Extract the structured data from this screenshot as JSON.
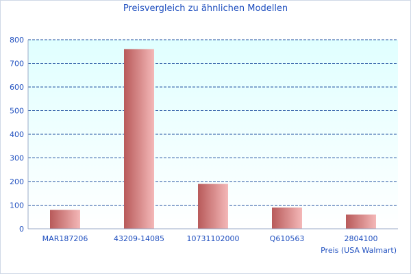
{
  "chart_data": {
    "type": "bar",
    "title": "Preisvergleich zu ähnlichen Modellen",
    "xlabel": "Preis (USA Walmart)",
    "ylabel": "",
    "categories": [
      "MAR187206",
      "43209-14085",
      "10731102000",
      "Q610563",
      "2804100"
    ],
    "values": [
      80,
      760,
      190,
      90,
      60
    ],
    "ylim": [
      0,
      800
    ],
    "yticks": [
      0,
      100,
      200,
      300,
      400,
      500,
      600,
      700,
      800
    ],
    "grid": true,
    "colors": {
      "bar_dark": "#b85a5a",
      "bar_light": "#f4b8b8",
      "plot_bg_top": "#e0ffff",
      "plot_bg_bottom": "#ffffff",
      "grid": "#1f4f9f",
      "text": "#1f4fbf",
      "axis": "#9aa9c7"
    }
  }
}
